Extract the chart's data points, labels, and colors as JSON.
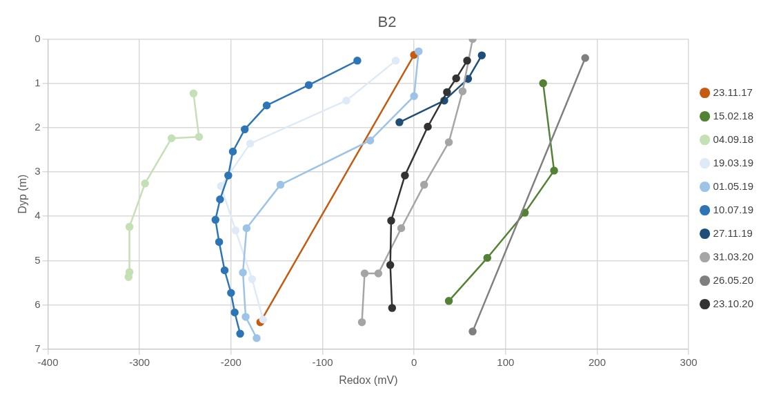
{
  "chart_data": {
    "type": "line",
    "title": "B2",
    "xlabel": "Redox (mV)",
    "ylabel": "Dyp (m)",
    "xlim": [
      -400,
      300
    ],
    "xticks": [
      -400,
      -300,
      -200,
      -100,
      0,
      100,
      200,
      300
    ],
    "ylim": [
      7,
      0
    ],
    "yticks": [
      0,
      1,
      2,
      3,
      4,
      5,
      6,
      7
    ],
    "grid": true,
    "legend": "right",
    "marker": "circle",
    "line_style": "solid",
    "series": [
      {
        "name": "23.11.17",
        "color": "#c55a11",
        "x": [
          0,
          -168
        ],
        "values": [
          0.36,
          6.39
        ]
      },
      {
        "name": "15.02.18",
        "color": "#548235",
        "x": [
          141,
          153,
          121,
          80,
          38
        ],
        "values": [
          1.0,
          2.97,
          3.92,
          4.94,
          5.91
        ]
      },
      {
        "name": "04.09.18",
        "color": "#c5e0b4",
        "x": [
          -241,
          -235,
          -265,
          -294,
          -311,
          -311,
          -312
        ],
        "values": [
          1.23,
          2.21,
          2.24,
          3.26,
          4.24,
          5.26,
          5.37
        ]
      },
      {
        "name": "19.03.19",
        "color": "#deebf7",
        "x": [
          -20,
          -74,
          -179,
          -211,
          -195,
          -177,
          -165
        ],
        "values": [
          0.49,
          1.39,
          2.36,
          3.32,
          4.32,
          5.42,
          6.33
        ]
      },
      {
        "name": "01.05.19",
        "color": "#9dc3e6",
        "x": [
          5,
          0,
          -48,
          -146,
          -183,
          -187,
          -184,
          -172
        ],
        "values": [
          0.28,
          1.29,
          2.29,
          3.29,
          4.27,
          5.27,
          6.27,
          6.75
        ]
      },
      {
        "name": "10.07.19",
        "color": "#2e75b6",
        "x": [
          -62,
          -115,
          -161,
          -185,
          -198,
          -203,
          -212,
          -217,
          -213,
          -207,
          -200,
          -196,
          -190
        ],
        "values": [
          0.49,
          1.04,
          1.5,
          2.04,
          2.54,
          3.08,
          3.62,
          4.08,
          4.58,
          5.22,
          5.73,
          6.17,
          6.65
        ]
      },
      {
        "name": "27.11.19",
        "color": "#1f4e79",
        "x": [
          74,
          59,
          33,
          -16
        ],
        "values": [
          0.37,
          0.9,
          1.39,
          1.88
        ]
      },
      {
        "name": "31.03.20",
        "color": "#a5a5a5",
        "x": [
          64,
          53,
          38,
          11,
          -14,
          -39,
          -54,
          -57
        ],
        "values": [
          0,
          1.18,
          2.33,
          3.29,
          4.27,
          5.29,
          5.29,
          6.39
        ]
      },
      {
        "name": "26.05.20",
        "color": "#7f7f7f",
        "x": [
          187,
          64
        ],
        "values": [
          0.43,
          6.6
        ]
      },
      {
        "name": "23.10.20",
        "color": "#333333",
        "x": [
          58,
          46,
          36,
          15,
          -10,
          -25,
          -26,
          -24
        ],
        "values": [
          0.49,
          0.89,
          1.2,
          1.98,
          3.08,
          4.1,
          5.1,
          6.07
        ]
      }
    ]
  }
}
